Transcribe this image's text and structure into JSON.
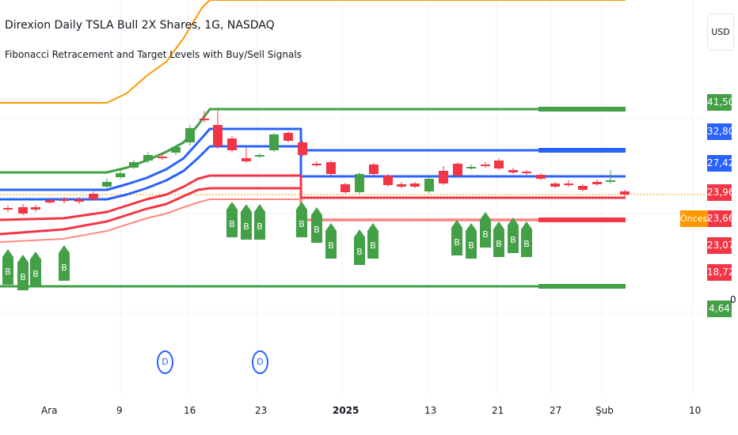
{
  "header": {
    "title": "Direxion Daily TSLA Bull 2X Shares, 1G, NASDAQ",
    "indicator": "Fibonacci Retracement and Target Levels with Buy/Sell Signals"
  },
  "currency_button": "USD",
  "price_scale": [
    {
      "label": "41,50",
      "color": "#43a047"
    },
    {
      "label": "32,80",
      "color": "#2962ff"
    },
    {
      "label": "27,42",
      "color": "#2962ff"
    },
    {
      "label": "23,96",
      "color": "#f23645"
    },
    {
      "label": "23,66",
      "color": "#f23645"
    },
    {
      "label": "23,07",
      "color": "#f23645"
    },
    {
      "label": "18,72",
      "color": "#f23645"
    },
    {
      "label": "4,64",
      "color": "#43a047"
    }
  ],
  "premarket_label": "Öncesi",
  "axis_zero": "0",
  "x_axis": [
    {
      "label": "Ara",
      "bold": false
    },
    {
      "label": "9",
      "bold": false
    },
    {
      "label": "16",
      "bold": false
    },
    {
      "label": "23",
      "bold": false
    },
    {
      "label": "2025",
      "bold": true
    },
    {
      "label": "13",
      "bold": false
    },
    {
      "label": "21",
      "bold": false
    },
    {
      "label": "27",
      "bold": false
    },
    {
      "label": "Şub",
      "bold": false
    },
    {
      "label": "10",
      "bold": false
    }
  ],
  "event_markers": [
    "D",
    "D"
  ],
  "signal_label": "B",
  "colors": {
    "up": "#43a047",
    "down": "#f23645",
    "blue_line": "#2962ff",
    "orange_line": "#ff9800",
    "red_line": "#f23645",
    "green_line": "#43a047"
  }
}
